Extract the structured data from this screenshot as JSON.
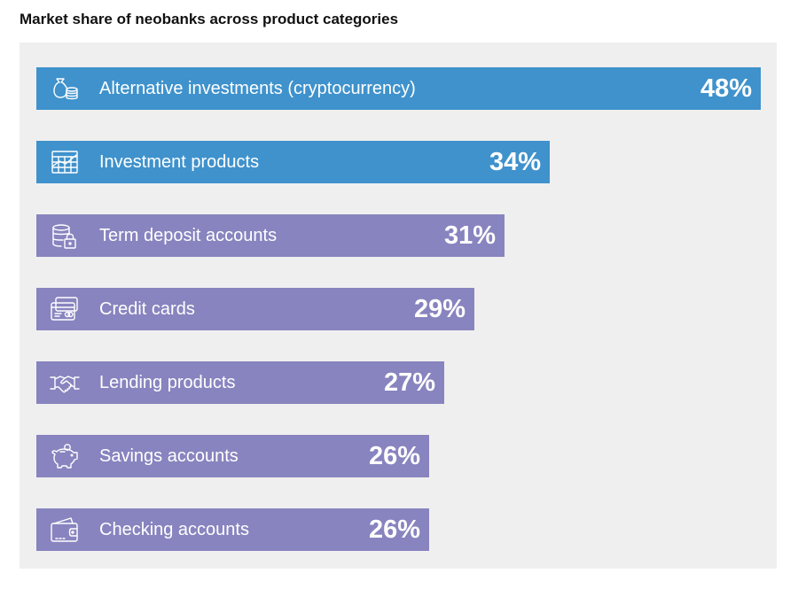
{
  "title": "Market share of neobanks across product categories",
  "colors": {
    "highlight": "#3f92cc",
    "regular": "#8884bf",
    "panel": "#efefef"
  },
  "chart_data": {
    "type": "bar",
    "orientation": "horizontal",
    "title": "Market share of neobanks across product categories",
    "xlabel": "",
    "ylabel": "",
    "xlim": [
      0,
      48
    ],
    "categories": [
      "Alternative investments (cryptocurrency)",
      "Investment products",
      "Term deposit accounts",
      "Credit cards",
      "Lending products",
      "Savings accounts",
      "Checking accounts"
    ],
    "values": [
      48,
      34,
      31,
      29,
      27,
      26,
      26
    ],
    "value_labels": [
      "48%",
      "34%",
      "31%",
      "29%",
      "27%",
      "26%",
      "26%"
    ],
    "icons": [
      "money-bag-coins-icon",
      "chart-grid-icon",
      "locked-database-icon",
      "credit-cards-icon",
      "handshake-icon",
      "piggy-bank-icon",
      "wallet-icon"
    ],
    "highlighted": [
      true,
      true,
      false,
      false,
      false,
      false,
      false
    ],
    "grid": false,
    "legend": "none"
  }
}
